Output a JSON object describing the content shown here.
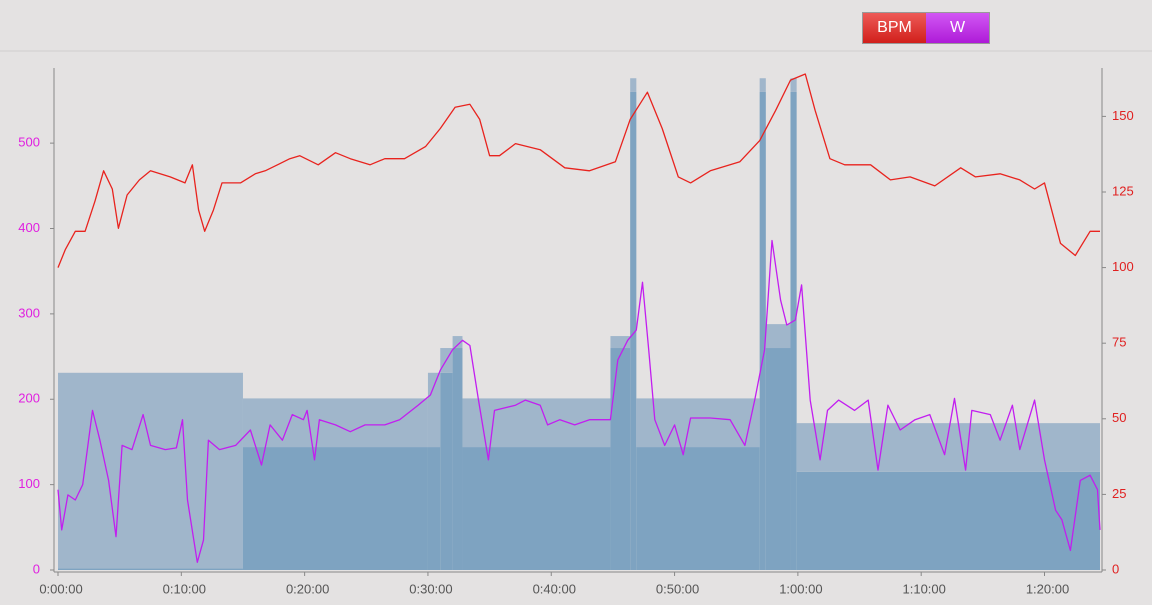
{
  "chart_data": {
    "type": "line",
    "xticks": [
      {
        "value": 0,
        "label": "0:00:00"
      },
      {
        "value": 10,
        "label": "0:10:00"
      },
      {
        "value": 20,
        "label": "0:20:00"
      },
      {
        "value": 30,
        "label": "0:30:00"
      },
      {
        "value": 40,
        "label": "0:40:00"
      },
      {
        "value": 50,
        "label": "0:50:00"
      },
      {
        "value": 60,
        "label": "1:00:00"
      },
      {
        "value": 70,
        "label": "1:10:00"
      },
      {
        "value": 80,
        "label": "1:20:00"
      }
    ],
    "xlim": [
      0,
      84.5
    ],
    "ylim": [
      0,
      588
    ],
    "yticks": [
      0,
      100,
      200,
      300,
      400,
      500
    ],
    "y_color": "#e020e0",
    "y2lim": [
      0,
      166
    ],
    "y2ticks": [
      0,
      25,
      50,
      75,
      100,
      125,
      150
    ],
    "y2_color": "#e02020",
    "zones": {
      "color_low": "#7ea3c1",
      "color_high": "#a0b6cb",
      "start": [
        0,
        15,
        30,
        31,
        32,
        32.8,
        44.8,
        46.4,
        46.9,
        56.9,
        57.4,
        59.4,
        59.9
      ],
      "end": [
        15,
        30,
        31,
        32,
        32.8,
        44.8,
        46.4,
        46.9,
        56.9,
        57.4,
        59.4,
        59.9,
        84.5
      ],
      "low": [
        2,
        144,
        144,
        231,
        260,
        144,
        260,
        560,
        144,
        560,
        260,
        560,
        115
      ],
      "high": [
        231,
        201,
        231,
        260,
        274,
        201,
        274,
        576,
        201,
        576,
        288,
        576,
        172
      ]
    },
    "series": [
      {
        "name": "BPM",
        "color": "#e8231e",
        "axis": "y2",
        "x": [
          0,
          0.6,
          1.4,
          2.2,
          3.0,
          3.7,
          4.4,
          4.9,
          5.6,
          6.6,
          7.5,
          9.1,
          10.3,
          10.9,
          11.4,
          11.9,
          12.6,
          13.3,
          14.8,
          16.0,
          16.8,
          17.8,
          18.8,
          19.6,
          21.1,
          22.5,
          23.7,
          25.3,
          26.5,
          28.1,
          29.8,
          31.0,
          32.2,
          33.4,
          34.2,
          35.0,
          35.8,
          37.1,
          39.1,
          41.1,
          43.1,
          45.2,
          46.4,
          47.8,
          49.0,
          50.3,
          51.3,
          52.9,
          55.3,
          56.9,
          58.2,
          59.4,
          60.6,
          61.4,
          62.6,
          63.8,
          65.9,
          67.5,
          69.1,
          71.1,
          73.2,
          74.4,
          76.4,
          78.0,
          79.2,
          80.0,
          81.3,
          82.5,
          83.7,
          84.5
        ],
        "values": [
          100,
          106,
          112,
          112,
          122,
          132,
          126,
          113,
          124,
          129,
          132,
          130,
          128,
          134,
          119,
          112,
          119,
          128,
          128,
          131,
          132,
          134,
          136,
          137,
          134,
          138,
          136,
          134,
          136,
          136,
          140,
          146,
          153,
          154,
          149,
          137,
          137,
          141,
          139,
          133,
          132,
          135,
          149,
          158,
          146,
          130,
          128,
          132,
          135,
          142,
          152,
          162,
          164,
          152,
          136,
          134,
          134,
          129,
          130,
          127,
          133,
          130,
          131,
          129,
          126,
          128,
          108,
          104,
          112,
          112
        ]
      },
      {
        "name": "W",
        "color": "#c21ef0",
        "x": [
          0,
          0.3,
          0.8,
          1.4,
          2.0,
          2.8,
          3.4,
          4.1,
          4.7,
          5.2,
          6.0,
          6.9,
          7.5,
          8.7,
          9.6,
          10.1,
          10.5,
          11.3,
          11.8,
          12.2,
          13.1,
          14.4,
          15.6,
          16.5,
          17.2,
          18.2,
          19.0,
          19.9,
          20.2,
          20.8,
          21.2,
          22.5,
          23.7,
          24.9,
          26.5,
          27.7,
          29.2,
          30.2,
          31.0,
          32.0,
          32.8,
          33.4,
          34.1,
          34.9,
          35.4,
          37.1,
          37.9,
          39.1,
          39.7,
          40.7,
          41.9,
          43.1,
          44.8,
          45.4,
          46.2,
          46.9,
          47.4,
          47.9,
          48.4,
          49.2,
          50.0,
          50.7,
          51.3,
          52.9,
          54.5,
          55.7,
          56.5,
          57.3,
          57.9,
          58.6,
          59.1,
          59.8,
          60.3,
          61.0,
          61.8,
          62.4,
          63.3,
          64.6,
          65.7,
          66.5,
          67.3,
          68.3,
          69.5,
          70.7,
          71.9,
          72.7,
          73.6,
          74.1,
          75.6,
          76.4,
          77.4,
          78.0,
          79.2,
          80.0,
          80.9,
          81.4,
          82.1,
          82.9,
          83.7,
          84.3,
          84.5
        ],
        "values": [
          94,
          47,
          88,
          82,
          100,
          187,
          152,
          105,
          39,
          146,
          141,
          182,
          146,
          141,
          143,
          176,
          82,
          9,
          35,
          152,
          141,
          146,
          164,
          123,
          170,
          152,
          182,
          176,
          187,
          129,
          176,
          170,
          162,
          170,
          170,
          176,
          193,
          205,
          234,
          258,
          269,
          263,
          199,
          129,
          187,
          193,
          199,
          193,
          170,
          176,
          170,
          176,
          176,
          246,
          269,
          281,
          337,
          258,
          176,
          146,
          170,
          135,
          178,
          178,
          176,
          146,
          199,
          258,
          386,
          316,
          287,
          293,
          334,
          199,
          129,
          187,
          199,
          187,
          199,
          117,
          193,
          164,
          176,
          182,
          135,
          201,
          117,
          187,
          182,
          152,
          193,
          141,
          199,
          129,
          70,
          59,
          23,
          105,
          111,
          94,
          47
        ]
      }
    ]
  }
}
